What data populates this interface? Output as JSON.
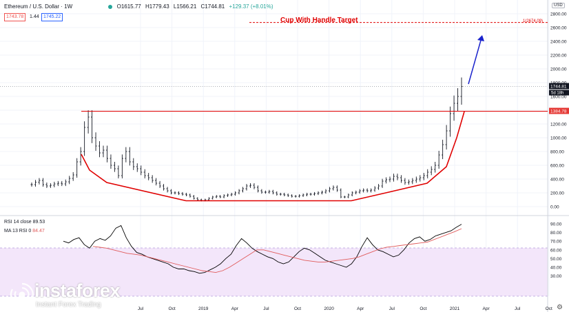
{
  "header": {
    "symbol": "Ethereum / U.S. Dollar · 1W",
    "o": "O1615.77",
    "h": "H1779.43",
    "l": "L1566.21",
    "c": "C1744.81",
    "chg": "+129.37 (+8.01%)"
  },
  "price_boxes": {
    "bid": "1743.78",
    "spread": "1.44",
    "ask": "1745.22"
  },
  "currency": "USD",
  "brand": {
    "name": "instaforex",
    "tagline": "Instant Forex Trading"
  },
  "rsi_labels": {
    "rsi": "RSI 14 close",
    "rsi_val": "89.53",
    "ma": "MA 13 RSI 0",
    "ma_val": "84.47"
  },
  "colors": {
    "candle": "#131722",
    "cup": "#e00000",
    "arrow": "#1a23cc",
    "rsi_line": "#000000",
    "ma_line": "#e05a5a",
    "rsi_band": "#f3e6fa"
  },
  "chart_data": [
    {
      "type": "candlestick",
      "title": "Ethereum / U.S. Dollar · 1W",
      "x_ticks": [
        "Jul",
        "Oct",
        "2019",
        "Apr",
        "Jul",
        "Oct",
        "2020",
        "Apr",
        "Jul",
        "Oct",
        "2021",
        "Apr",
        "Jul",
        "Oct"
      ],
      "y_ticks": [
        0,
        200,
        400,
        600,
        800,
        1000,
        1200,
        1400,
        1600,
        1800,
        2000,
        2200,
        2400,
        2600,
        2800
      ],
      "ylim": [
        -110,
        2880
      ],
      "price_tags": {
        "last": "1744.81",
        "last_timer": "5d 18h",
        "level": "1384.78"
      },
      "annotations": {
        "target_label": "Cup With Handle Target",
        "target_level": 2674.09,
        "target_tag": "1(2674.09)",
        "resistance_level": 1384.78
      },
      "close_series": [
        320,
        355,
        380,
        320,
        300,
        310,
        330,
        340,
        330,
        360,
        410,
        460,
        650,
        800,
        1150,
        1300,
        1000,
        880,
        780,
        820,
        700,
        600,
        550,
        450,
        700,
        800,
        650,
        580,
        550,
        500,
        450,
        420,
        380,
        340,
        300,
        260,
        230,
        200,
        200,
        190,
        180,
        170,
        150,
        120,
        100,
        90,
        100,
        120,
        140,
        150,
        140,
        160,
        170,
        180,
        200,
        230,
        260,
        300,
        310,
        280,
        230,
        210,
        210,
        220,
        200,
        180,
        180,
        170,
        160,
        150,
        150,
        160,
        170,
        180,
        180,
        190,
        200,
        210,
        230,
        260,
        280,
        240,
        140,
        140,
        170,
        200,
        210,
        230,
        240,
        230,
        240,
        270,
        300,
        370,
        390,
        400,
        440,
        420,
        380,
        350,
        360,
        380,
        400,
        420,
        450,
        500,
        540,
        600,
        750,
        900,
        1100,
        1350,
        1500,
        1600,
        1745
      ]
    },
    {
      "type": "line",
      "title": "RSI 14 close",
      "y_ticks": [
        30,
        40,
        50,
        60,
        70,
        80,
        90
      ],
      "ylim": [
        26,
        95
      ],
      "band": [
        30,
        70
      ],
      "series": [
        {
          "name": "RSI 14 close",
          "values": [
            70,
            68,
            72,
            74,
            66,
            62,
            70,
            73,
            71,
            76,
            85,
            88,
            74,
            64,
            57,
            55,
            52,
            50,
            48,
            46,
            44,
            40,
            38,
            38,
            36,
            35,
            33,
            34,
            37,
            40,
            44,
            50,
            55,
            65,
            73,
            68,
            62,
            58,
            55,
            52,
            50,
            46,
            44,
            46,
            52,
            58,
            62,
            60,
            56,
            52,
            48,
            46,
            44,
            42,
            40,
            44,
            52,
            64,
            74,
            66,
            60,
            58,
            55,
            52,
            54,
            60,
            68,
            73,
            75,
            70,
            72,
            76,
            78,
            80,
            82,
            86,
            89.53
          ]
        },
        {
          "name": "MA 13 RSI 0",
          "values": [
            64,
            63,
            62,
            60,
            58,
            56,
            55,
            54,
            52,
            50,
            48,
            46,
            44,
            42,
            40,
            38,
            36,
            35,
            34,
            36,
            40,
            45,
            50,
            55,
            60,
            60,
            58,
            56,
            54,
            52,
            50,
            48,
            47,
            46,
            46,
            47,
            48,
            49,
            50,
            52,
            55,
            58,
            61,
            63,
            64,
            65,
            66,
            67,
            68,
            69,
            72,
            75,
            78,
            81,
            84.47
          ]
        }
      ]
    }
  ]
}
